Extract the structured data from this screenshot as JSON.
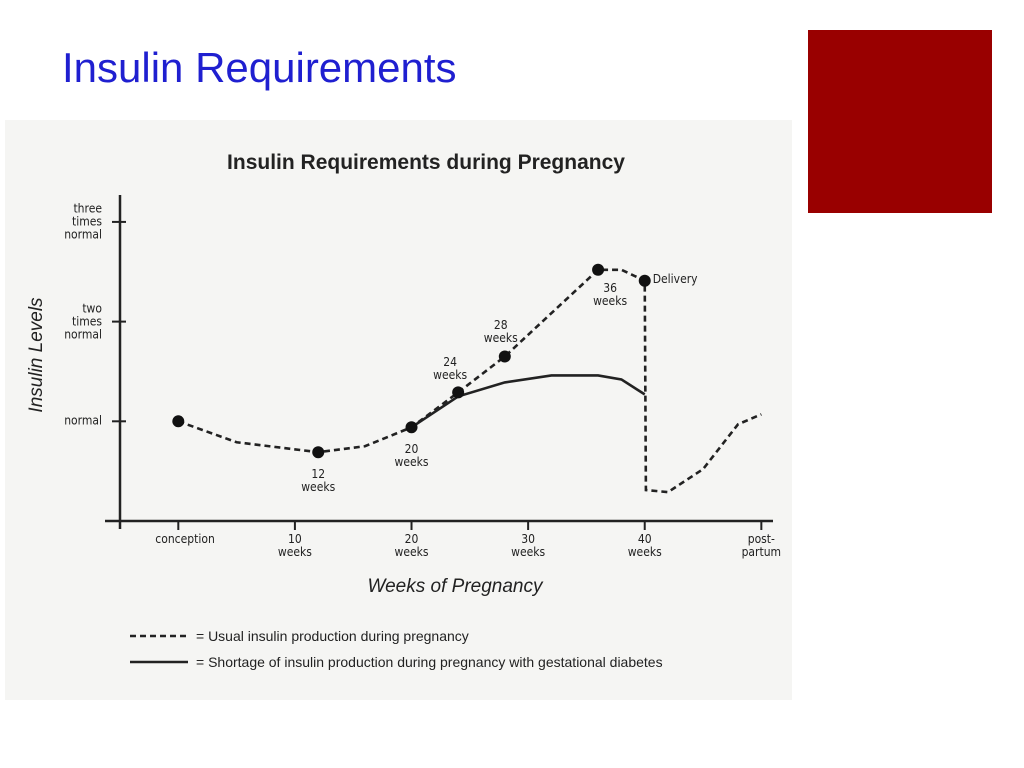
{
  "slide": {
    "title": "Insulin Requirements"
  },
  "chart_data": {
    "type": "line",
    "title": "Insulin Requirements during Pregnancy",
    "x_label": "Weeks of Pregnancy",
    "y_label": "Insulin Levels",
    "xlim": [
      -5,
      51
    ],
    "ylim": [
      0,
      3.27
    ],
    "xticks": [
      {
        "value": 0,
        "label": "conception"
      },
      {
        "value": 10,
        "label": "10 weeks"
      },
      {
        "value": 20,
        "label": "20 weeks"
      },
      {
        "value": 30,
        "label": "30 weeks"
      },
      {
        "value": 40,
        "label": "40 weeks"
      },
      {
        "value": 50,
        "label": "post-partum"
      }
    ],
    "yticks": [
      {
        "value": 1,
        "label": "normal"
      },
      {
        "value": 2,
        "label": "two times normal"
      },
      {
        "value": 3,
        "label": "three times normal"
      }
    ],
    "series": [
      {
        "name": "= Usual insulin production during pregnancy",
        "color": "#222222",
        "dash": true,
        "x": [
          0,
          5,
          12,
          16,
          20,
          24,
          28,
          36,
          38,
          40,
          40.1,
          42,
          45,
          48,
          50
        ],
        "values": [
          1.0,
          0.79,
          0.69,
          0.75,
          0.94,
          1.29,
          1.65,
          2.52,
          2.52,
          2.41,
          0.31,
          0.29,
          0.52,
          0.97,
          1.07
        ]
      },
      {
        "name": "= Shortage of insulin production during pregnancy with gestational diabetes",
        "color": "#222222",
        "dash": false,
        "x": [
          20,
          24,
          28,
          32,
          36,
          38,
          40
        ],
        "values": [
          0.94,
          1.25,
          1.39,
          1.46,
          1.46,
          1.42,
          1.27
        ]
      }
    ],
    "points": {
      "x": [
        0,
        12,
        20,
        24,
        28,
        36,
        40
      ],
      "values": [
        1.0,
        0.69,
        0.94,
        1.29,
        1.65,
        2.52,
        2.41
      ],
      "labels": [
        null,
        "12 weeks",
        "20 weeks",
        "24 weeks",
        "28 weeks",
        "36 weeks",
        "Delivery"
      ]
    }
  }
}
